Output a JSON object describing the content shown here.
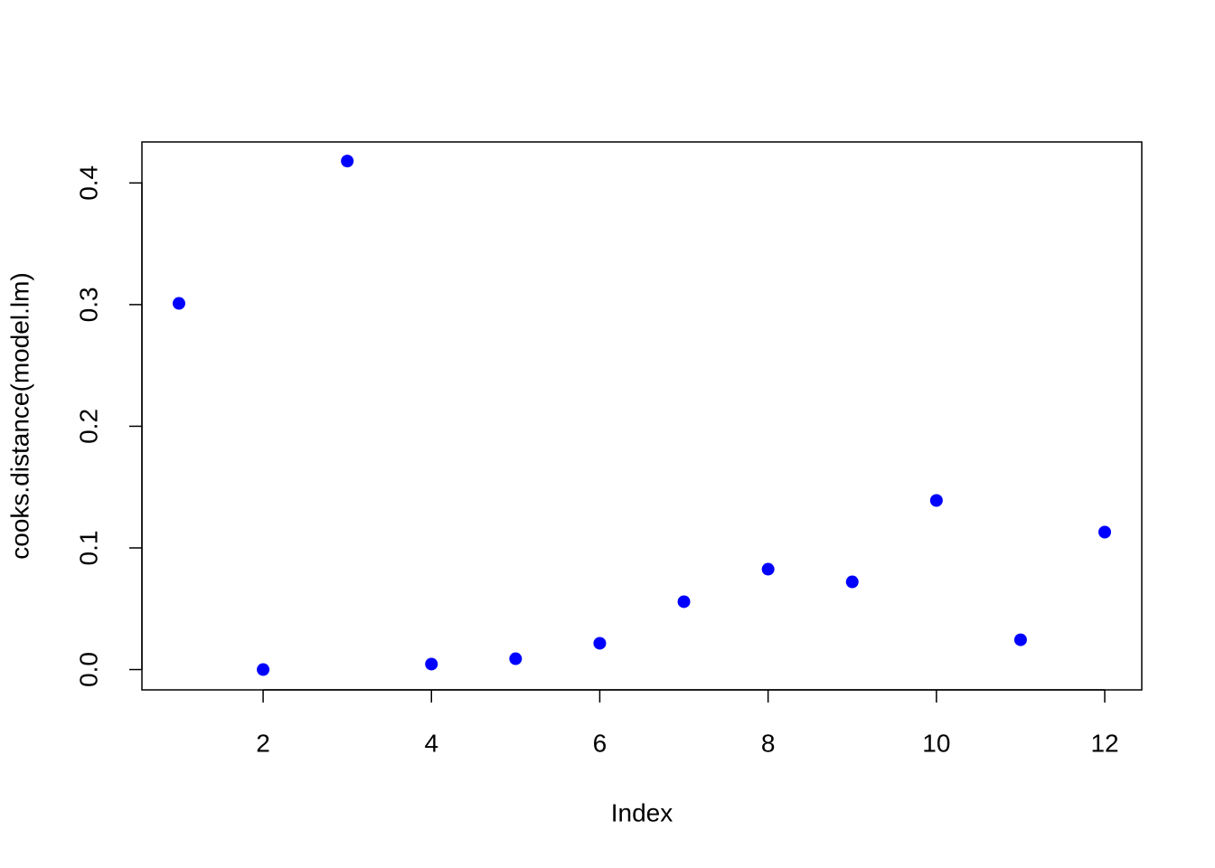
{
  "chart_data": {
    "type": "scatter",
    "x_label": "Index",
    "y_label": "cooks.distance(model.lm)",
    "x": [
      1,
      2,
      3,
      4,
      5,
      6,
      7,
      8,
      9,
      10,
      11,
      12
    ],
    "values": [
      0.301,
      0.0,
      0.418,
      0.0045,
      0.0089,
      0.0216,
      0.0558,
      0.0825,
      0.0721,
      0.139,
      0.0245,
      0.113
    ],
    "color": "#0000ff",
    "xlim": [
      0.56,
      12.44
    ],
    "ylim": [
      -0.0167,
      0.4337
    ],
    "xticks": [
      2,
      4,
      6,
      8,
      10,
      12
    ],
    "yticks": [
      {
        "value": 0,
        "label": "0.0"
      },
      0.1,
      0.2,
      0.3,
      0.4
    ],
    "grid": false
  }
}
